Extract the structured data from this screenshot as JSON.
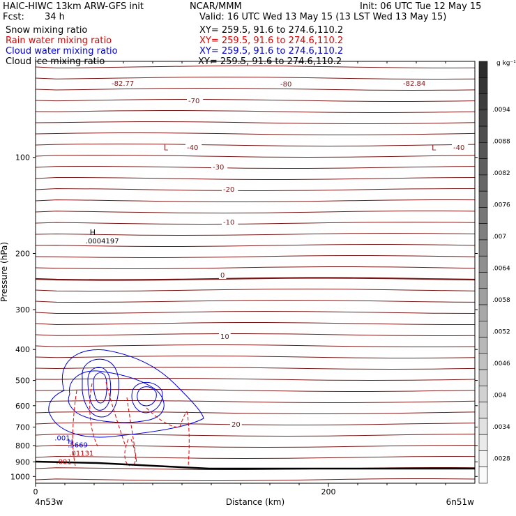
{
  "header": {
    "title_left": "HAIC-HIWC 13km ARW-GFS init",
    "org": "NCAR/MMM",
    "init": "Init: 06 UTC Tue 12 May 15",
    "fcst_label": "Fcst:",
    "fcst_value": "34 h",
    "valid": "Valid: 16 UTC Wed 13 May 15 (13 LST Wed 13 May 15)"
  },
  "fields": [
    {
      "name": "Snow mixing ratio",
      "xy": "XY= 259.5, 91.6 to 274.6,110.2",
      "color": "#000000"
    },
    {
      "name": "Rain water mixing ratio",
      "xy": "XY= 259.5, 91.6 to 274.6,110.2",
      "color": "#e00000"
    },
    {
      "name": "Cloud water mixing ratio",
      "xy": "XY= 259.5, 91.6 to 274.6,110.2",
      "color": "#0000d0"
    },
    {
      "name": "Cloud ice mixing ratio",
      "xy": "XY= 259.5, 91.6 to 274.6,110.2",
      "color": "#000000"
    }
  ],
  "chart_data": {
    "type": "line",
    "xlabel": "Distance (km)",
    "ylabel": "Pressure (hPa)",
    "xlim": [
      0,
      300
    ],
    "ylim": [
      1050,
      50
    ],
    "y_scale": "log",
    "x_ticks": [
      0,
      200
    ],
    "y_ticks": [
      100,
      200,
      300,
      400,
      500,
      600,
      700,
      800,
      900,
      1000
    ],
    "x_endpoint_labels": {
      "left": "4n53w",
      "right": "6n51w"
    },
    "temperature_contour_labels": [
      "-82.77",
      "-82.84",
      "-80",
      "-70",
      "-40",
      "-40",
      "-30",
      "-20",
      "-10",
      "0",
      "10",
      "20"
    ],
    "extrema": [
      {
        "type": "L",
        "value": "-82.77",
        "x": 89,
        "p": 95
      },
      {
        "type": "L",
        "value": "-82.84",
        "x": 272,
        "p": 95
      },
      {
        "type": "H",
        "value": ".0004197",
        "x": 39,
        "p": 175
      }
    ],
    "cloud_water_labels": [
      {
        "label": ".001",
        "x": 13,
        "p": 770
      },
      {
        "label": "H",
        "x": 22,
        "p": 790
      },
      {
        "label": ".5669",
        "x": 22,
        "p": 810
      }
    ],
    "rain_labels": [
      {
        "label": ".01131",
        "x": 23,
        "p": 860
      },
      {
        "label": ".001",
        "x": 14,
        "p": 915
      }
    ],
    "colorbar": {
      "unit": "g kg⁻¹",
      "labels": [
        ".0094",
        ".0088",
        ".0082",
        ".0076",
        ".007",
        ".0064",
        ".0058",
        ".0052",
        ".0046",
        ".004",
        ".0034",
        ".0028"
      ]
    }
  }
}
